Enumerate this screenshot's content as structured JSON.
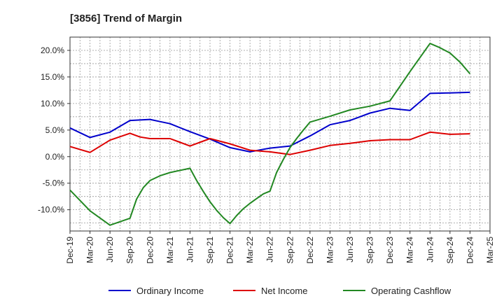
{
  "chart_data": {
    "type": "line",
    "title": "[3856]  Trend of Margin",
    "xlabel": "",
    "ylabel": "",
    "ylim": [
      -14.0,
      22.5
    ],
    "yticks": [
      20,
      15,
      10,
      5,
      0,
      -5,
      -10
    ],
    "ytick_labels": [
      "20.0%",
      "15.0%",
      "10.0%",
      "5.0%",
      "0.0%",
      "-5.0%",
      "-10.0%"
    ],
    "x_tick_labels": [
      "Dec-19",
      "Mar-20",
      "Jun-20",
      "Sep-20",
      "Dec-20",
      "Mar-21",
      "Jun-21",
      "Sep-21",
      "Dec-21",
      "Mar-22",
      "Jun-22",
      "Sep-22",
      "Dec-22",
      "Mar-23",
      "Jun-23",
      "Sep-23",
      "Dec-23",
      "Mar-24",
      "Jun-24",
      "Sep-24",
      "Dec-24",
      "Mar-25"
    ],
    "grid": true,
    "legend_position": "bottom",
    "series": [
      {
        "name": "Ordinary Income",
        "color": "#0000cc",
        "points": [
          [
            0,
            5.4
          ],
          [
            1,
            3.6
          ],
          [
            2,
            4.6
          ],
          [
            3,
            6.8
          ],
          [
            4,
            7.0
          ],
          [
            4.5,
            6.6
          ],
          [
            5,
            6.2
          ],
          [
            6,
            4.7
          ],
          [
            7,
            3.3
          ],
          [
            8,
            1.7
          ],
          [
            9,
            0.9
          ],
          [
            10,
            1.6
          ],
          [
            11,
            2.0
          ],
          [
            12,
            3.9
          ],
          [
            13,
            6.0
          ],
          [
            14,
            6.8
          ],
          [
            15,
            8.2
          ],
          [
            16,
            9.1
          ],
          [
            17,
            8.7
          ],
          [
            18,
            11.9
          ],
          [
            19,
            12.0
          ],
          [
            20,
            12.1
          ]
        ]
      },
      {
        "name": "Net Income",
        "color": "#dd0000",
        "points": [
          [
            0,
            1.9
          ],
          [
            1,
            0.8
          ],
          [
            2,
            3.1
          ],
          [
            3,
            4.4
          ],
          [
            3.5,
            3.7
          ],
          [
            4,
            3.4
          ],
          [
            5,
            3.4
          ],
          [
            6,
            2.0
          ],
          [
            7,
            3.4
          ],
          [
            8,
            2.4
          ],
          [
            9,
            1.2
          ],
          [
            10,
            0.9
          ],
          [
            11,
            0.4
          ],
          [
            12,
            1.2
          ],
          [
            13,
            2.1
          ],
          [
            14,
            2.5
          ],
          [
            15,
            3.0
          ],
          [
            16,
            3.2
          ],
          [
            17,
            3.2
          ],
          [
            18,
            4.6
          ],
          [
            19,
            4.2
          ],
          [
            20,
            4.3
          ]
        ]
      },
      {
        "name": "Operating Cashflow",
        "color": "#228822",
        "points": [
          [
            0,
            -6.3
          ],
          [
            1,
            -10.2
          ],
          [
            2,
            -12.9
          ],
          [
            3,
            -11.6
          ],
          [
            3.33,
            -8.0
          ],
          [
            3.67,
            -5.8
          ],
          [
            4,
            -4.5
          ],
          [
            4.5,
            -3.6
          ],
          [
            5,
            -3.0
          ],
          [
            6,
            -2.2
          ],
          [
            6.33,
            -4.5
          ],
          [
            6.67,
            -6.6
          ],
          [
            7,
            -8.5
          ],
          [
            7.33,
            -10.1
          ],
          [
            7.67,
            -11.5
          ],
          [
            8,
            -12.6
          ],
          [
            8.33,
            -11.1
          ],
          [
            8.67,
            -9.8
          ],
          [
            9,
            -8.8
          ],
          [
            9.33,
            -7.9
          ],
          [
            9.67,
            -7.0
          ],
          [
            10,
            -6.5
          ],
          [
            10.33,
            -3.0
          ],
          [
            10.67,
            -0.5
          ],
          [
            11,
            1.7
          ],
          [
            11.33,
            3.4
          ],
          [
            11.67,
            5.0
          ],
          [
            12,
            6.5
          ],
          [
            13,
            7.6
          ],
          [
            14,
            8.8
          ],
          [
            15,
            9.5
          ],
          [
            16,
            10.5
          ],
          [
            17,
            16.0
          ],
          [
            18,
            21.3
          ],
          [
            18.5,
            20.5
          ],
          [
            19,
            19.5
          ],
          [
            19.5,
            17.8
          ],
          [
            20,
            15.6
          ]
        ]
      }
    ]
  }
}
